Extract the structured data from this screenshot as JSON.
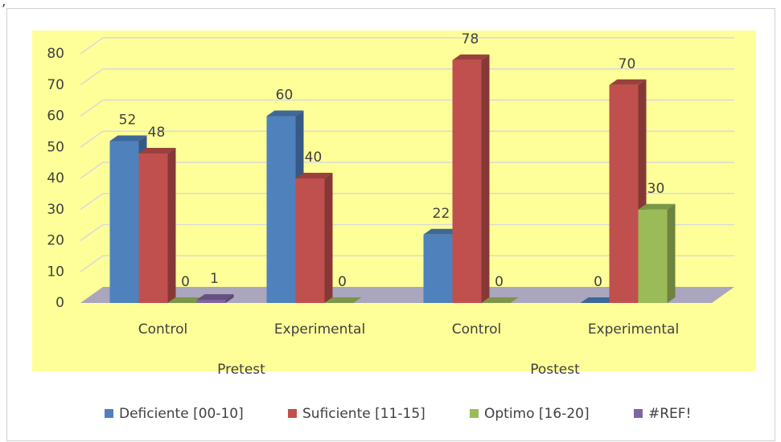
{
  "chart_data": {
    "type": "bar3d",
    "stray_text": ",",
    "groups": [
      {
        "name": "Pretest",
        "categories": [
          "Control",
          "Experimental"
        ]
      },
      {
        "name": "Postest",
        "categories": [
          "Control",
          "Experimental"
        ]
      }
    ],
    "series": [
      {
        "name": "Deficiente [00-10]",
        "color": "#4f81bd",
        "values": [
          52,
          60,
          22,
          0
        ]
      },
      {
        "name": "Suficiente [11-15]",
        "color": "#c0504d",
        "values": [
          48,
          40,
          78,
          70
        ]
      },
      {
        "name": "Optimo [16-20]",
        "color": "#9bbb59",
        "values": [
          0,
          0,
          0,
          30
        ]
      },
      {
        "name": "#REF!",
        "color": "#8064a2",
        "values": [
          1,
          null,
          null,
          null
        ]
      }
    ],
    "ylim": [
      0,
      80
    ],
    "yticks": [
      0,
      10,
      20,
      30,
      40,
      50,
      60,
      70,
      80
    ],
    "grid": true,
    "legend": "bottom"
  }
}
